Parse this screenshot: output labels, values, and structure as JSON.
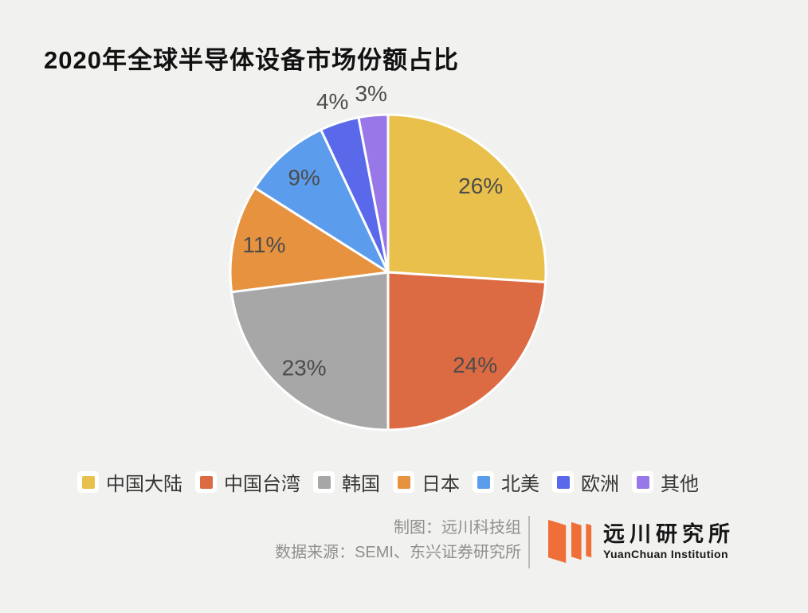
{
  "title": "2020年全球半导体设备市场份额占比",
  "chart_data": {
    "type": "pie",
    "categories": [
      "中国大陆",
      "中国台湾",
      "韩国",
      "日本",
      "北美",
      "欧洲",
      "其他"
    ],
    "values": [
      26,
      24,
      23,
      11,
      9,
      4,
      3
    ],
    "labels": [
      "26%",
      "24%",
      "23%",
      "11%",
      "9%",
      "4%",
      "3%"
    ],
    "colors": [
      "#e8c04b",
      "#dc6a42",
      "#a7a7a7",
      "#e6923f",
      "#5c9ced",
      "#5a69e9",
      "#9877e8"
    ],
    "start_angle_deg": 0,
    "direction": "clockwise",
    "legend_position": "bottom",
    "slice_border_color": "#ffffff",
    "label_color": "#4c4c4c"
  },
  "footer": {
    "credit_line1": "制图：远川科技组",
    "credit_line2": "数据来源：SEMI、东兴证券研究所"
  },
  "logo": {
    "name_cn": "远川研究所",
    "name_en": "YuanChuan Institution",
    "mark_color": "#f06e38"
  },
  "style": {
    "background": "#f1f1ef",
    "title_color": "#111111",
    "legend_text_color": "#363636",
    "credit_text_color": "#8f8f8f"
  }
}
